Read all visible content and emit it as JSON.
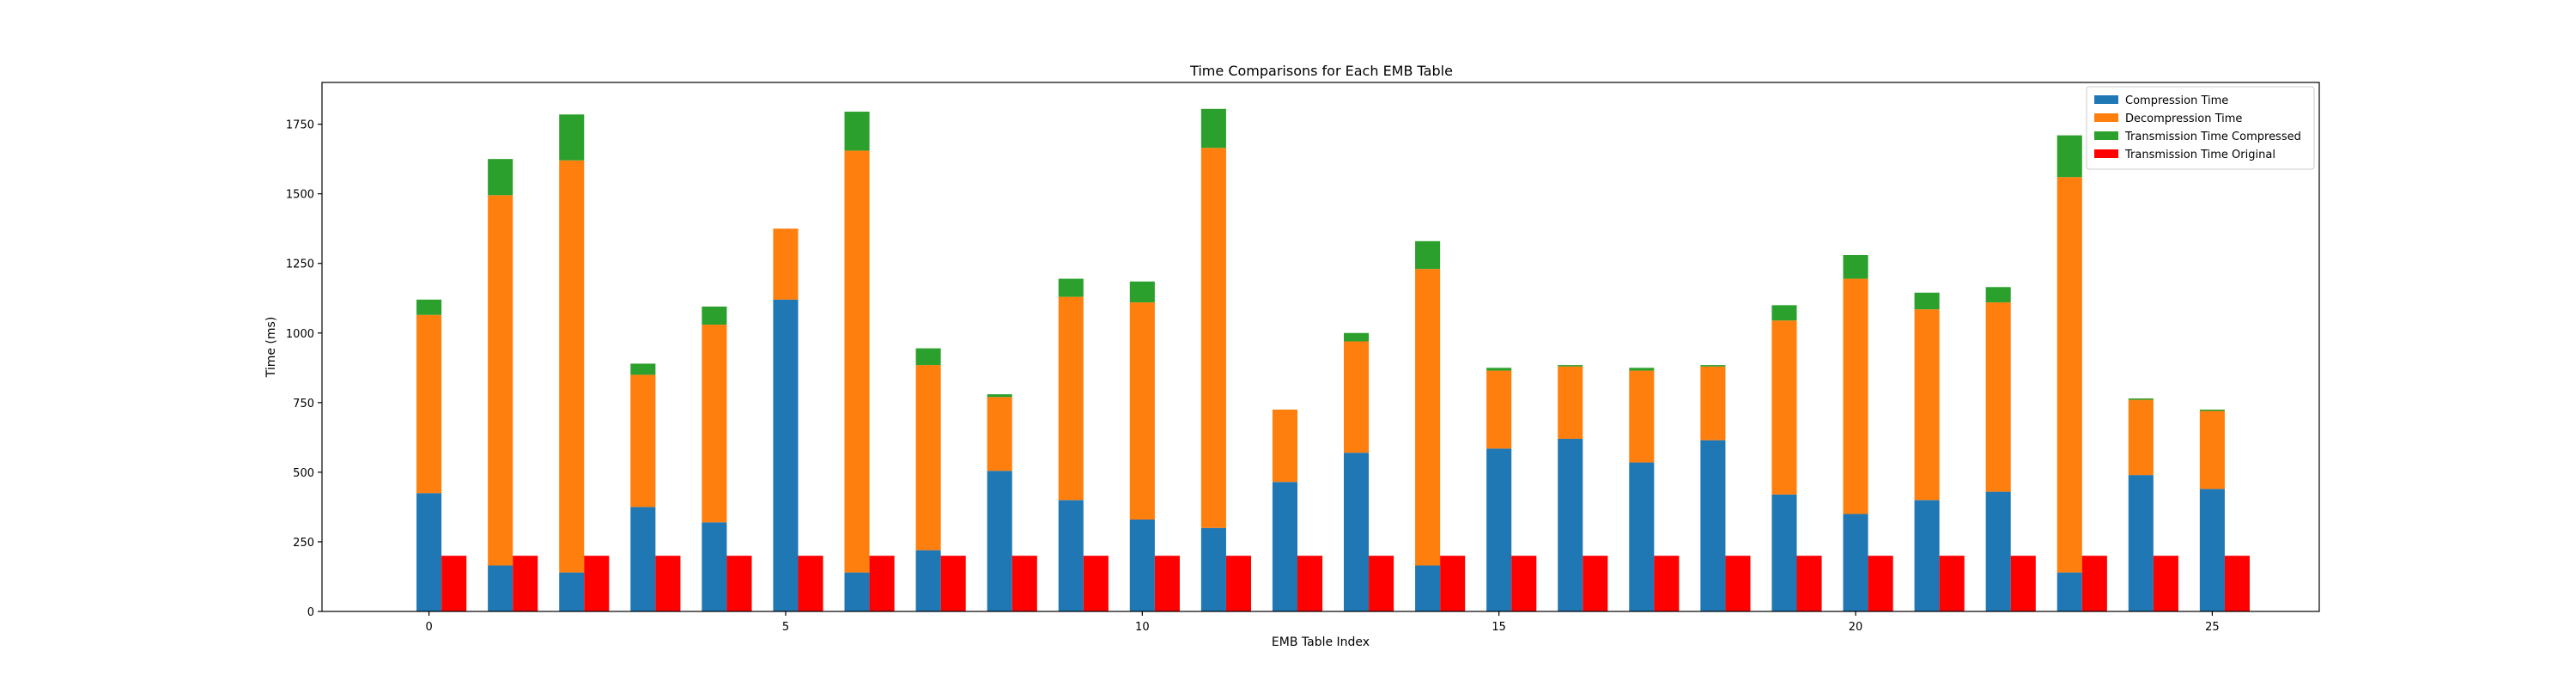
{
  "chart_data": {
    "type": "bar",
    "title": "Time Comparisons for Each EMB Table",
    "xlabel": "EMB Table Index",
    "ylabel": "Time (ms)",
    "xlim": [
      -1.5,
      26.5
    ],
    "ylim": [
      0,
      1900
    ],
    "x_ticks": [
      0,
      5,
      10,
      15,
      20,
      25
    ],
    "y_ticks": [
      0,
      250,
      500,
      750,
      1000,
      1250,
      1500,
      1750
    ],
    "legend_position": "top-right",
    "categories": [
      0,
      1,
      2,
      3,
      4,
      5,
      6,
      7,
      8,
      9,
      10,
      11,
      12,
      13,
      14,
      15,
      16,
      17,
      18,
      19,
      20,
      21,
      22,
      23,
      24,
      25
    ],
    "series": [
      {
        "name": "Compression Time",
        "color": "#1f77b4",
        "stack": "compressed",
        "values": [
          425,
          165,
          140,
          375,
          320,
          1120,
          140,
          220,
          505,
          400,
          330,
          300,
          465,
          570,
          165,
          585,
          620,
          535,
          615,
          420,
          350,
          400,
          430,
          140,
          490,
          440
        ]
      },
      {
        "name": "Decompression Time",
        "color": "#ff7f0e",
        "stack": "compressed",
        "values": [
          640,
          1330,
          1480,
          475,
          710,
          255,
          1515,
          665,
          265,
          730,
          780,
          1365,
          260,
          400,
          1065,
          280,
          260,
          330,
          265,
          625,
          845,
          685,
          680,
          1420,
          270,
          280
        ]
      },
      {
        "name": "Transmission Time Compressed",
        "color": "#2ca02c",
        "stack": "compressed",
        "values": [
          55,
          130,
          165,
          40,
          65,
          0,
          140,
          60,
          10,
          65,
          75,
          140,
          0,
          30,
          100,
          10,
          5,
          10,
          5,
          55,
          85,
          60,
          55,
          150,
          5,
          5
        ]
      },
      {
        "name": "Transmission Time Original",
        "color": "#ff0000",
        "stack": "original",
        "values": [
          200,
          200,
          200,
          200,
          200,
          200,
          200,
          200,
          200,
          200,
          200,
          200,
          200,
          200,
          200,
          200,
          200,
          200,
          200,
          200,
          200,
          200,
          200,
          200,
          200,
          200
        ]
      }
    ]
  }
}
